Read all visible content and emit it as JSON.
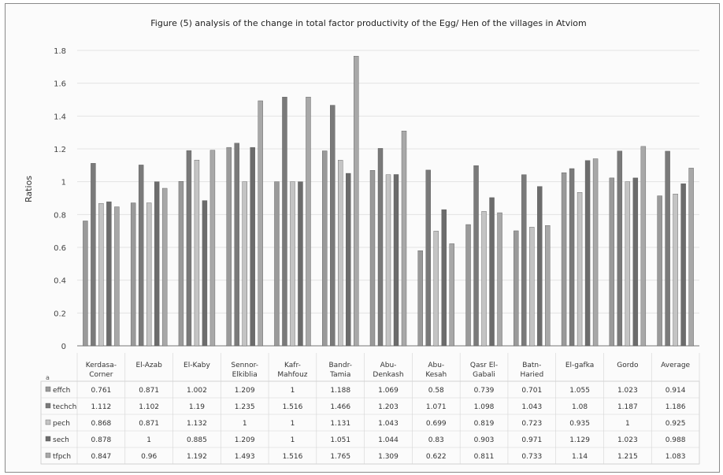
{
  "chart_data": {
    "type": "bar",
    "title": "Figure (5) analysis of the change in total factor productivity of the Egg/ Hen of the villages in Atviom",
    "ylabel": "Ratios",
    "ylim": [
      0,
      1.8
    ],
    "yticks": [
      "0",
      "0.2",
      "0.4",
      "0.6",
      "0.8",
      "1",
      "1.2",
      "1.4",
      "1.6",
      "1.8"
    ],
    "categories": [
      "Kerdasa-\nCorner",
      "El-Azab",
      "El-Kaby",
      "Sennor-\nElkiblia",
      "Kafr-\nMahfouz",
      "Bandr-\nTamia",
      "Abu-\nDenkash",
      "Abu-\nKesah",
      "Qasr El-\nGabali",
      "Batn-\nHaried",
      "El-gafka",
      "Gordo",
      "Average"
    ],
    "table_marker": "a",
    "series": [
      {
        "name": "effch",
        "color": "#9a9a9a",
        "values": [
          0.761,
          0.871,
          1.002,
          1.209,
          1,
          1.188,
          1.069,
          0.58,
          0.739,
          0.701,
          1.055,
          1.023,
          0.914
        ],
        "labels": [
          "0.761",
          "0.871",
          "1.002",
          "1.209",
          "1",
          "1.188",
          "1.069",
          "0.58",
          "0.739",
          "0.701",
          "1.055",
          "1.023",
          "0.914"
        ]
      },
      {
        "name": "techch",
        "color": "#7a7a7a",
        "values": [
          1.112,
          1.102,
          1.19,
          1.235,
          1.516,
          1.466,
          1.203,
          1.071,
          1.098,
          1.043,
          1.08,
          1.187,
          1.186
        ],
        "labels": [
          "1.112",
          "1.102",
          "1.19",
          "1.235",
          "1.516",
          "1.466",
          "1.203",
          "1.071",
          "1.098",
          "1.043",
          "1.08",
          "1.187",
          "1.186"
        ]
      },
      {
        "name": "pech",
        "color": "#c4c4c4",
        "values": [
          0.868,
          0.871,
          1.132,
          1,
          1,
          1.131,
          1.043,
          0.699,
          0.819,
          0.723,
          0.935,
          1,
          0.925
        ],
        "labels": [
          "0.868",
          "0.871",
          "1.132",
          "1",
          "1",
          "1.131",
          "1.043",
          "0.699",
          "0.819",
          "0.723",
          "0.935",
          "1",
          "0.925"
        ]
      },
      {
        "name": "sech",
        "color": "#6c6c6c",
        "values": [
          0.878,
          1,
          0.885,
          1.209,
          1,
          1.051,
          1.044,
          0.83,
          0.903,
          0.971,
          1.129,
          1.023,
          0.988
        ],
        "labels": [
          "0.878",
          "1",
          "0.885",
          "1.209",
          "1",
          "1.051",
          "1.044",
          "0.83",
          "0.903",
          "0.971",
          "1.129",
          "1.023",
          "0.988"
        ]
      },
      {
        "name": "tfpch",
        "color": "#a8a8a8",
        "values": [
          0.847,
          0.96,
          1.192,
          1.493,
          1.516,
          1.765,
          1.309,
          0.622,
          0.811,
          0.733,
          1.14,
          1.215,
          1.083
        ],
        "labels": [
          "0.847",
          "0.96",
          "1.192",
          "1.493",
          "1.516",
          "1.765",
          "1.309",
          "0.622",
          "0.811",
          "0.733",
          "1.14",
          "1.215",
          "1.083"
        ]
      }
    ]
  }
}
